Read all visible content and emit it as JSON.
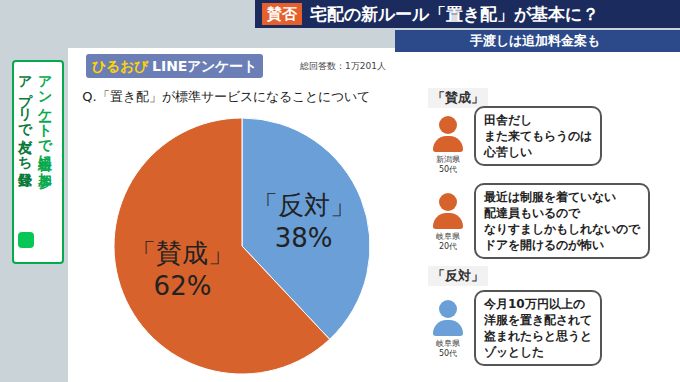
{
  "chart_data": {
    "type": "pie",
    "title": "Q.「置き配」が標準サービスになることについて",
    "categories": [
      "「反対」",
      "「賛成」"
    ],
    "values": [
      38,
      62
    ],
    "value_labels": [
      "38%",
      "62%"
    ],
    "colors": [
      "#6a9fd8",
      "#d8622c"
    ],
    "data_labels": true,
    "legend": "none"
  },
  "banner": {
    "tag": "賛否",
    "title": "宅配の新ルール「置き配」が基本に？",
    "subtitle": "手渡しは追加料金案も"
  },
  "logo": {
    "name": "ひるおび",
    "label": "LINEアンケート",
    "total": "総回答数：1万201人"
  },
  "sidebar": [
    "アンケートで番組に参加",
    "アプリで友だち登録"
  ],
  "comments": [
    {
      "label": "「賛成」",
      "items": [
        {
          "lines": [
            "田舎だし",
            "また来てもらうのは",
            "心苦しい"
          ],
          "speaker": [
            "新潟県",
            "50代"
          ]
        },
        {
          "lines": [
            "最近は制服を着ていない",
            "配達員もいるので",
            "なりすましかもしれないので",
            "ドアを開けるのが怖い"
          ],
          "speaker": [
            "岐阜県",
            "20代"
          ]
        }
      ]
    },
    {
      "label": "「反対」",
      "items": [
        {
          "lines": [
            "今月10万円以上の",
            "洋服を置き配されて",
            "盗まれたらと思うと",
            "ゾッとした"
          ],
          "speaker": [
            "岐阜県",
            "50代"
          ]
        }
      ]
    }
  ]
}
